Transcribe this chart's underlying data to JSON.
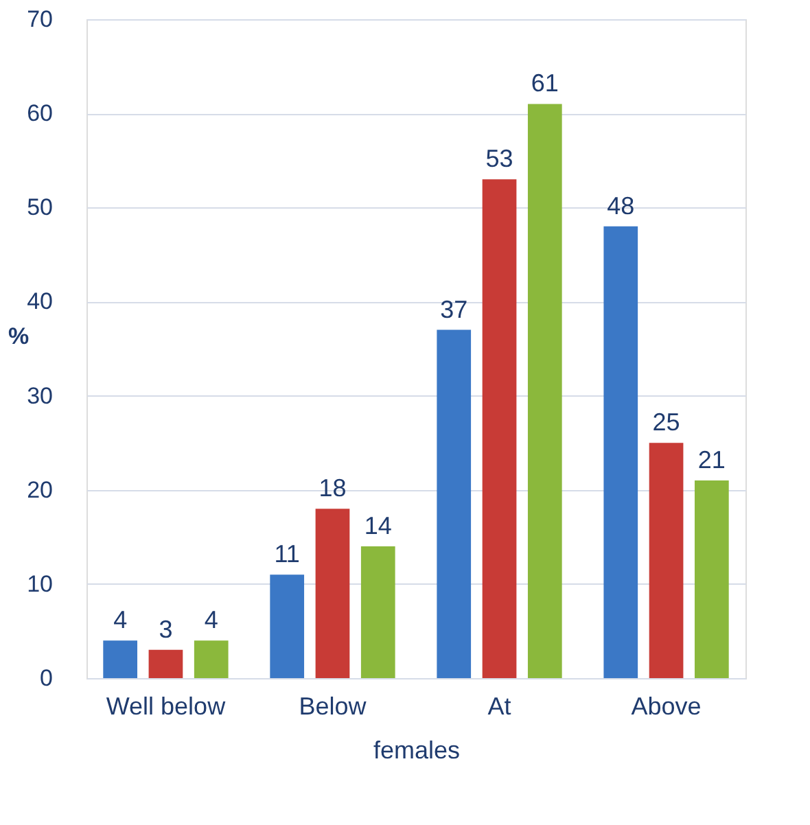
{
  "chart_data": {
    "type": "bar",
    "xlabel": "females",
    "ylabel": "%",
    "categories": [
      "Well below",
      "Below",
      "At",
      "Above"
    ],
    "series": [
      {
        "color": "#3b78c6",
        "values": [
          4,
          11,
          37,
          48
        ]
      },
      {
        "color": "#c83b36",
        "values": [
          3,
          18,
          53,
          25
        ]
      },
      {
        "color": "#8bb83c",
        "values": [
          4,
          14,
          61,
          21
        ]
      }
    ],
    "ylim": [
      0,
      70
    ],
    "yticks": [
      0,
      10,
      20,
      30,
      40,
      50,
      60,
      70
    ],
    "grid": "y",
    "data_labels": true
  }
}
